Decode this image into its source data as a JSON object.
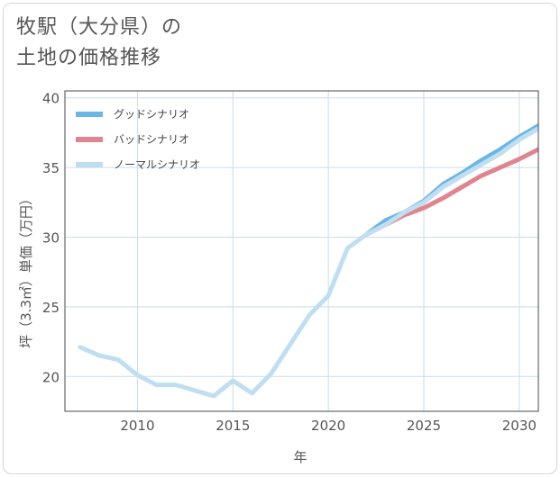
{
  "title_line1": "牧駅（大分県）の",
  "title_line2": "土地の価格推移",
  "colors": {
    "good": "#6cb6e6",
    "bad": "#e0848f",
    "normal": "#bfdff0",
    "grid": "#c9dde8",
    "plot_border": "#4a4a4a"
  },
  "chart_data": {
    "type": "line",
    "title": "牧駅（大分県）の土地の価格推移",
    "xlabel": "年",
    "ylabel": "坪（3.3㎡）単価（万円）",
    "xlim": [
      2006.2,
      2031
    ],
    "ylim": [
      17.5,
      40.5
    ],
    "x_ticks": [
      2010,
      2015,
      2020,
      2025,
      2030
    ],
    "y_ticks": [
      20,
      25,
      30,
      35,
      40
    ],
    "grid": true,
    "legend_position": "top-left",
    "series": [
      {
        "key": "good",
        "name": "グッドシナリオ",
        "x": [
          2022,
          2023,
          2024,
          2025,
          2026,
          2027,
          2028,
          2029,
          2030,
          2031
        ],
        "values": [
          30.2,
          31.2,
          31.8,
          32.6,
          33.8,
          34.6,
          35.5,
          36.3,
          37.2,
          38.0
        ]
      },
      {
        "key": "bad",
        "name": "バッドシナリオ",
        "x": [
          2022,
          2023,
          2024,
          2025,
          2026,
          2027,
          2028,
          2029,
          2030,
          2031
        ],
        "values": [
          30.2,
          30.9,
          31.6,
          32.1,
          32.8,
          33.6,
          34.4,
          35.0,
          35.6,
          36.3
        ]
      },
      {
        "key": "normal",
        "name": "ノーマルシナリオ",
        "x": [
          2007,
          2008,
          2009,
          2010,
          2011,
          2012,
          2013,
          2014,
          2015,
          2016,
          2017,
          2018,
          2019,
          2020,
          2021,
          2022,
          2023,
          2024,
          2025,
          2026,
          2027,
          2028,
          2029,
          2030,
          2031
        ],
        "values": [
          22.1,
          21.5,
          21.2,
          20.1,
          19.4,
          19.4,
          19.0,
          18.6,
          19.7,
          18.8,
          20.2,
          22.3,
          24.4,
          25.8,
          29.2,
          30.2,
          30.9,
          31.8,
          32.5,
          33.6,
          34.4,
          35.2,
          36.0,
          37.0,
          37.8
        ]
      }
    ]
  }
}
